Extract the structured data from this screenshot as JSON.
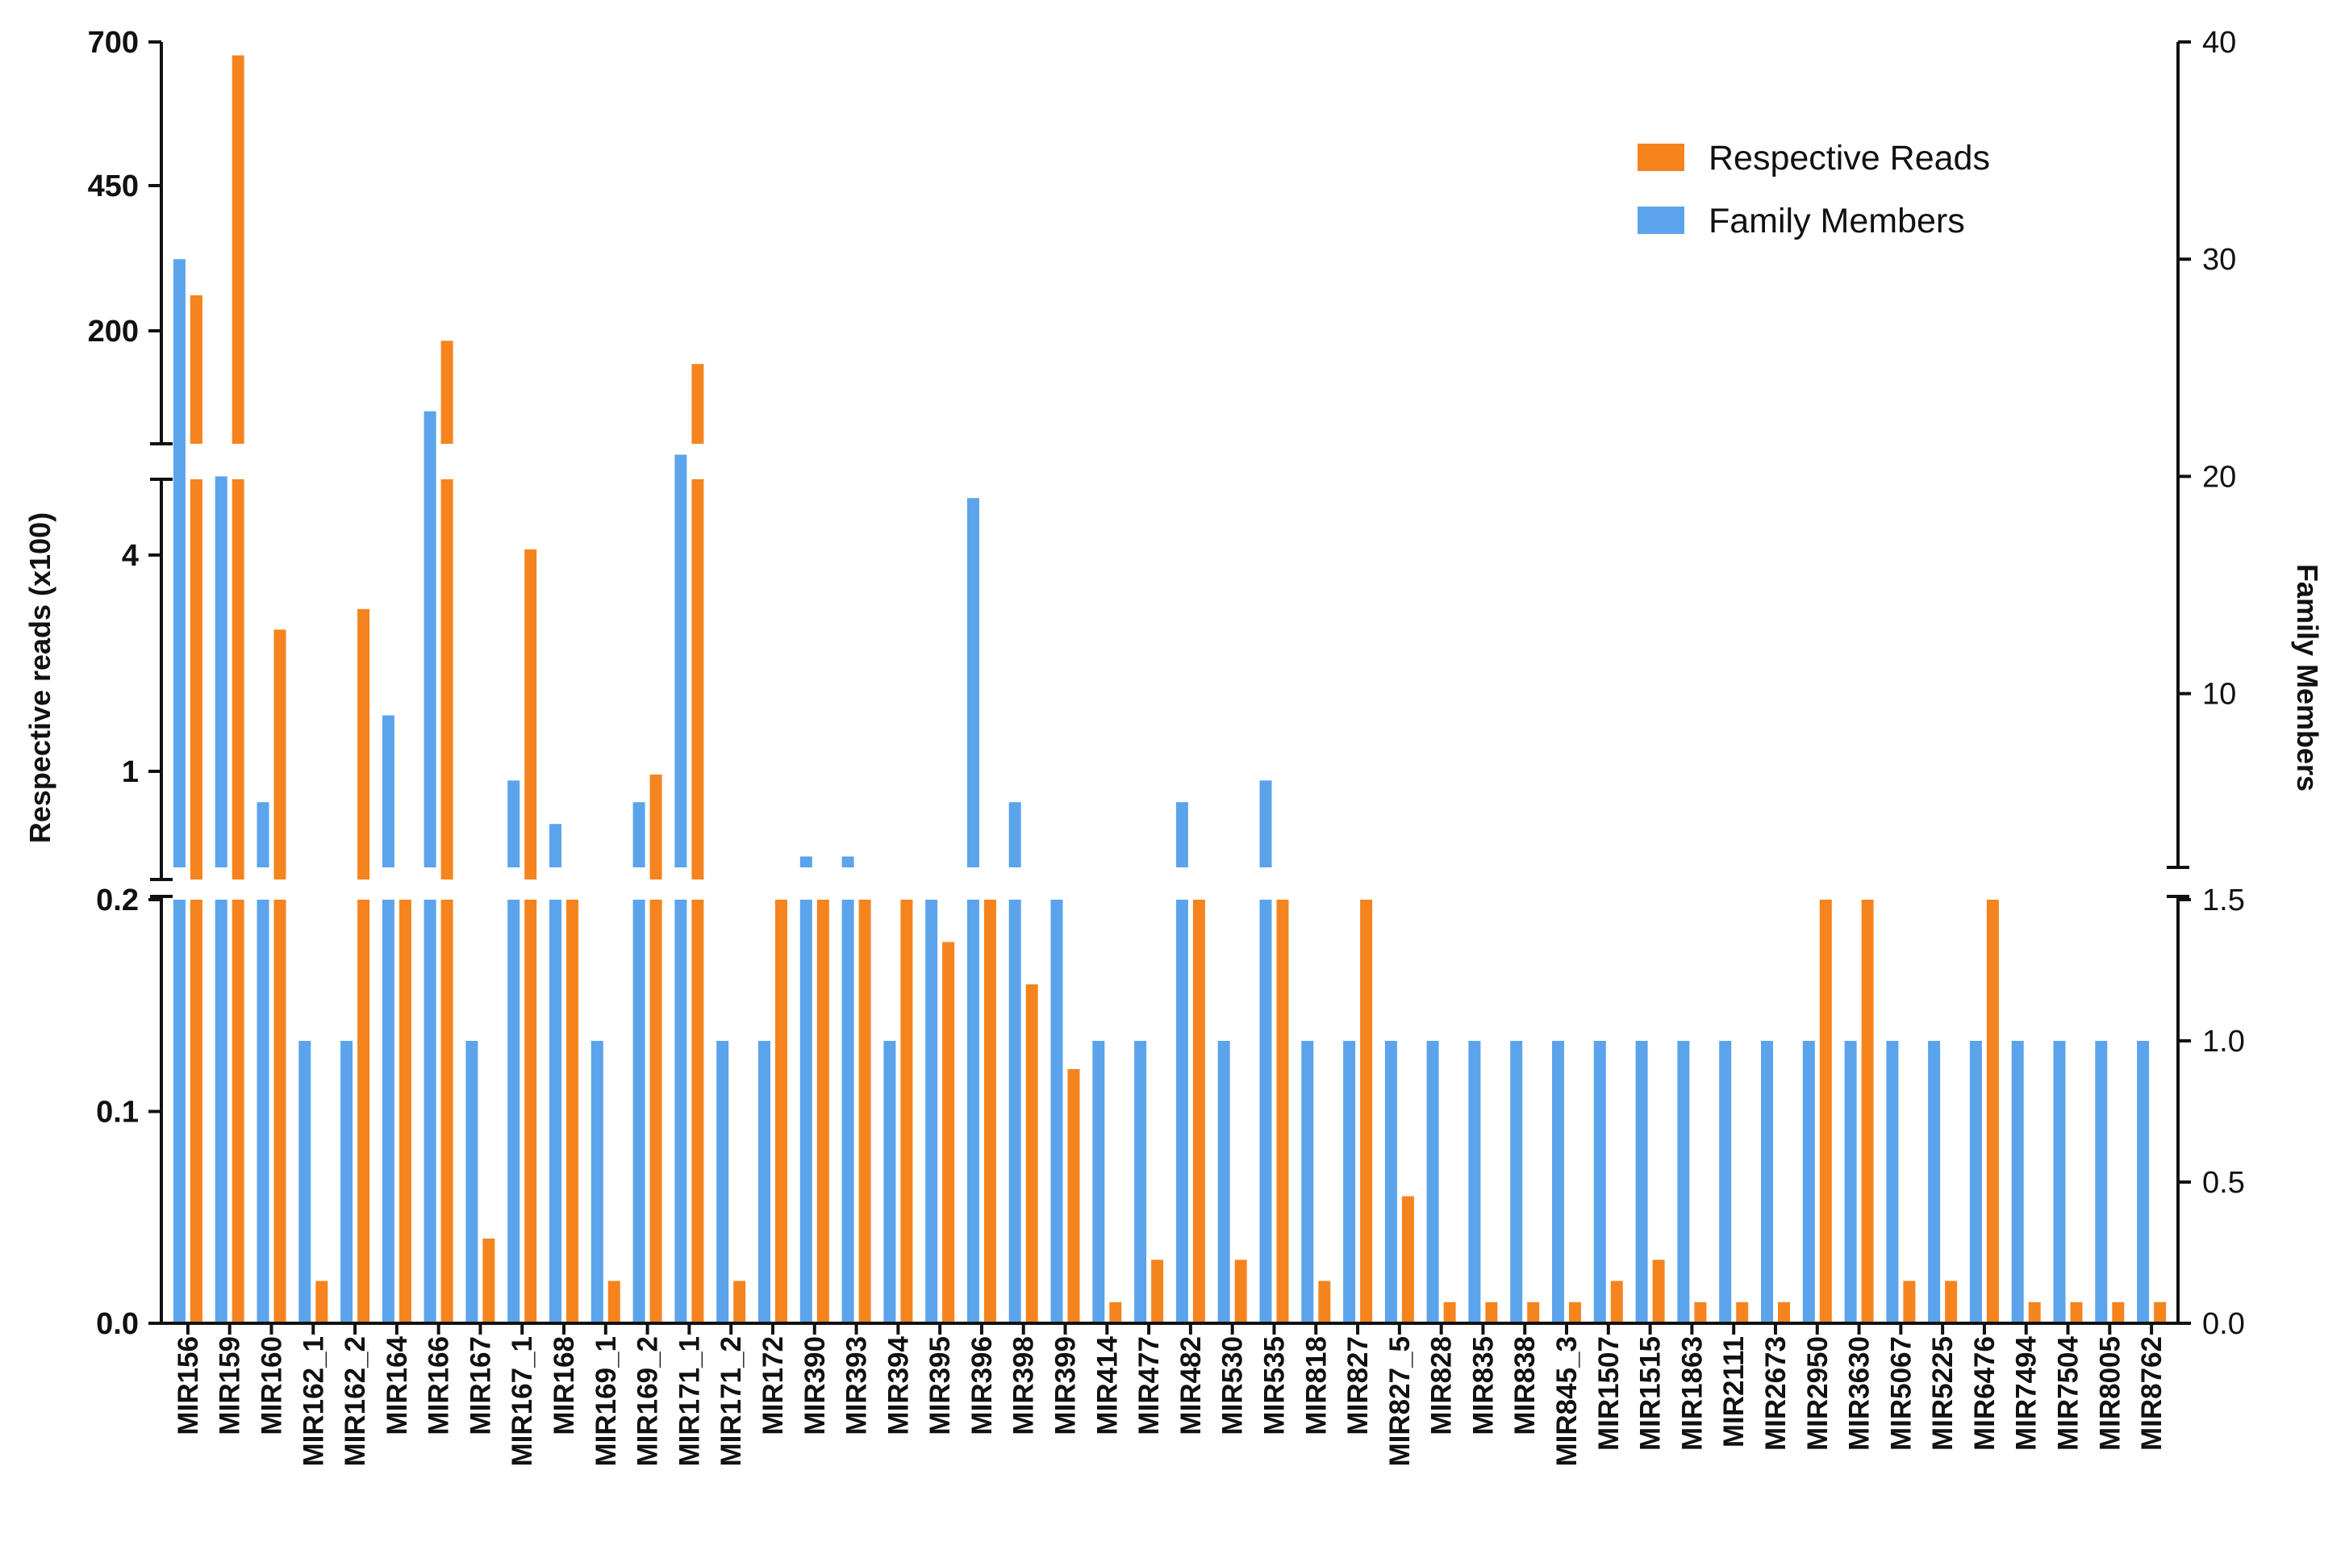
{
  "chart_data": {
    "type": "bar",
    "categories": [
      "MIR156",
      "MIR159",
      "MIR160",
      "MIR162_1",
      "MIR162_2",
      "MIR164",
      "MIR166",
      "MIR167",
      "MIR167_1",
      "MIR168",
      "MIR169_1",
      "MIR169_2",
      "MIR171_1",
      "MIR171_2",
      "MIR172",
      "MIR390",
      "MIR393",
      "MIR394",
      "MIR395",
      "MIR396",
      "MIR398",
      "MIR399",
      "MIR414",
      "MIR477",
      "MIR482",
      "MIR530",
      "MIR535",
      "MIR818",
      "MIR827",
      "MIR827_5",
      "MIR828",
      "MIR835",
      "MIR838",
      "MIR845_3",
      "MIR1507",
      "MIR1515",
      "MIR1863",
      "MIR2111",
      "MIR2673",
      "MIR2950",
      "MIR3630",
      "MIR5067",
      "MIR5225",
      "MIR6476",
      "MIR7494",
      "MIR7504",
      "MIR8005",
      "MIR8762"
    ],
    "series": [
      {
        "name": "Respective Reads",
        "axis": "left",
        "color": "#F5841F",
        "values": [
          265,
          677,
          2.48,
          0.02,
          2.83,
          0.2,
          187,
          0.04,
          4.15,
          0.2,
          0.02,
          0.98,
          147,
          0.02,
          0.2,
          0.2,
          0.2,
          0.2,
          0.18,
          0.2,
          0.16,
          0.12,
          0.01,
          0.03,
          0.2,
          0.03,
          0.2,
          0.02,
          0.2,
          0.06,
          0.01,
          0.01,
          0.01,
          0.01,
          0.02,
          0.03,
          0.01,
          0.01,
          0.01,
          0.2,
          0.2,
          0.02,
          0.02,
          0.2,
          0.01,
          0.01,
          0.01,
          0.01
        ]
      },
      {
        "name": "Family Members",
        "axis": "right",
        "color": "#5BA4EC",
        "values": [
          30,
          20,
          5,
          1,
          1,
          9,
          23,
          1,
          6,
          4,
          1,
          5,
          21,
          1,
          1,
          2.5,
          2.5,
          1,
          1.5,
          19,
          5,
          1.5,
          1,
          1,
          5,
          1,
          6,
          1,
          1,
          1,
          1,
          1,
          1,
          1,
          1,
          1,
          1,
          1,
          1,
          1,
          1,
          1,
          1,
          1,
          1,
          1,
          1,
          1
        ]
      }
    ],
    "left_axis": {
      "title": "Respective reads (x100)",
      "ticks": [
        "0.0",
        "0.1",
        "0.2",
        "1",
        "4",
        "200",
        "450",
        "700"
      ],
      "segments": [
        {
          "range": [
            0,
            0.2
          ],
          "scale": "linear"
        },
        {
          "range": [
            0.5,
            6.5
          ],
          "scale": "log"
        },
        {
          "range": [
            10,
            700
          ],
          "scale": "linear"
        }
      ]
    },
    "right_axis": {
      "title": "Family Members",
      "ticks": [
        "0.0",
        "0.5",
        "1.0",
        "1.5",
        "10",
        "20",
        "30",
        "40"
      ],
      "segments": [
        {
          "range": [
            0,
            1.5
          ],
          "scale": "linear"
        },
        {
          "range": [
            2,
            40
          ],
          "scale": "linear"
        }
      ]
    },
    "legend": {
      "position": "top-right",
      "items": [
        "Respective Reads",
        "Family Members"
      ]
    }
  }
}
